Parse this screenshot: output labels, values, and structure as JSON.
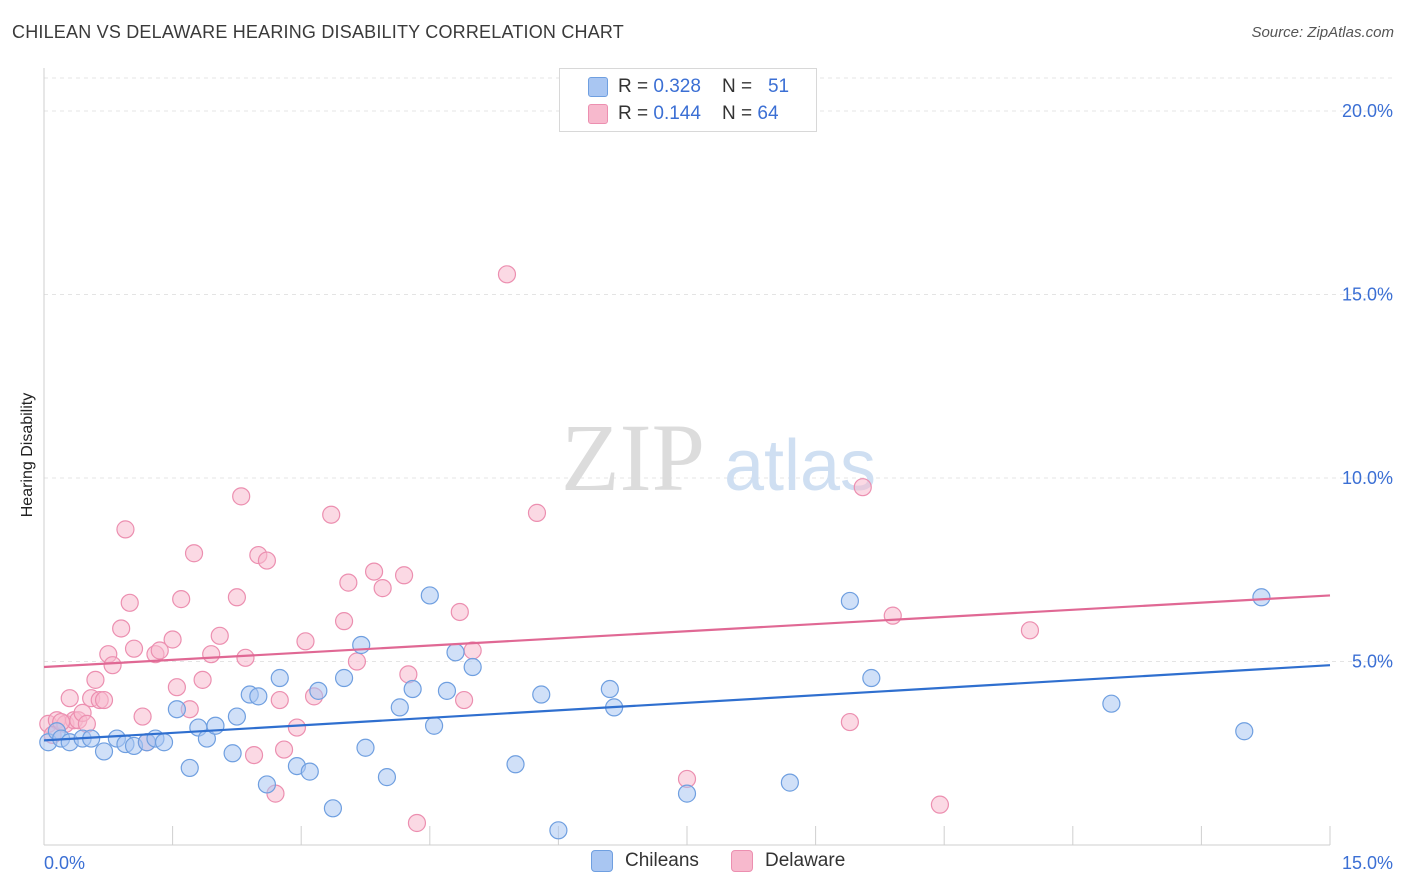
{
  "title": "CHILEAN VS DELAWARE HEARING DISABILITY CORRELATION CHART",
  "source": "Source: ZipAtlas.com",
  "colors": {
    "chileans_fill": "#a9c6f2",
    "chileans_stroke": "#6f9fe0",
    "chileans_line": "#2f6fcf",
    "delaware_fill": "#f7b9cd",
    "delaware_stroke": "#ec8fb0",
    "delaware_line": "#e06894",
    "tick_label": "#3b6fd4",
    "grid": "#e4e4e4"
  },
  "legend": {
    "rows": [
      {
        "r_label": "R = ",
        "r_value": "0.328",
        "n_label": "N = ",
        "n_value": "51"
      },
      {
        "r_label": "R = ",
        "r_value": "0.144",
        "n_label": "N = ",
        "n_value": "64"
      }
    ]
  },
  "bottom_legend": [
    "Chileans",
    "Delaware"
  ],
  "watermark": {
    "zip": "ZIP",
    "atlas": "atlas"
  },
  "chart_data": {
    "type": "scatter",
    "title": "CHILEAN VS DELAWARE HEARING DISABILITY CORRELATION CHART",
    "xlabel": "",
    "ylabel": "Hearing Disability",
    "xlim": [
      0,
      15
    ],
    "ylim": [
      0,
      20
    ],
    "x_tick_labels": [
      "0.0%",
      "15.0%"
    ],
    "y_ticks": [
      5,
      10,
      15,
      20
    ],
    "y_tick_labels": [
      "5.0%",
      "10.0%",
      "15.0%",
      "20.0%"
    ],
    "grid": true,
    "legend_position": "top-center",
    "series": [
      {
        "name": "Chileans",
        "R": 0.328,
        "N": 51,
        "trend": {
          "x": [
            0,
            15
          ],
          "y": [
            2.85,
            4.9
          ]
        },
        "points": [
          [
            0.05,
            2.8
          ],
          [
            0.15,
            3.1
          ],
          [
            0.2,
            2.9
          ],
          [
            0.3,
            2.8
          ],
          [
            0.45,
            2.9
          ],
          [
            0.55,
            2.9
          ],
          [
            0.7,
            2.55
          ],
          [
            0.85,
            2.9
          ],
          [
            0.95,
            2.75
          ],
          [
            1.05,
            2.7
          ],
          [
            1.2,
            2.8
          ],
          [
            1.3,
            2.9
          ],
          [
            1.4,
            2.8
          ],
          [
            1.55,
            3.7
          ],
          [
            1.7,
            2.1
          ],
          [
            1.8,
            3.2
          ],
          [
            1.9,
            2.9
          ],
          [
            2.0,
            3.25
          ],
          [
            2.2,
            2.5
          ],
          [
            2.25,
            3.5
          ],
          [
            2.4,
            4.1
          ],
          [
            2.5,
            4.05
          ],
          [
            2.6,
            1.65
          ],
          [
            2.75,
            4.55
          ],
          [
            2.95,
            2.15
          ],
          [
            3.1,
            2.0
          ],
          [
            3.2,
            4.2
          ],
          [
            3.37,
            1.0
          ],
          [
            3.5,
            4.55
          ],
          [
            3.7,
            5.45
          ],
          [
            3.75,
            2.65
          ],
          [
            4.0,
            1.85
          ],
          [
            4.15,
            3.75
          ],
          [
            4.3,
            4.25
          ],
          [
            4.5,
            6.8
          ],
          [
            4.55,
            3.25
          ],
          [
            4.7,
            4.2
          ],
          [
            4.8,
            5.25
          ],
          [
            5.0,
            4.85
          ],
          [
            5.5,
            2.2
          ],
          [
            5.8,
            4.1
          ],
          [
            6.0,
            0.4
          ],
          [
            6.6,
            4.25
          ],
          [
            6.65,
            3.75
          ],
          [
            7.5,
            1.4
          ],
          [
            8.7,
            1.7
          ],
          [
            9.4,
            6.65
          ],
          [
            9.65,
            4.55
          ],
          [
            12.45,
            3.85
          ],
          [
            14.0,
            3.1
          ],
          [
            14.2,
            6.75
          ]
        ]
      },
      {
        "name": "Delaware",
        "R": 0.144,
        "N": 64,
        "trend": {
          "x": [
            0,
            15
          ],
          "y": [
            4.85,
            6.8
          ]
        },
        "points": [
          [
            0.05,
            3.3
          ],
          [
            0.15,
            3.4
          ],
          [
            0.25,
            3.3
          ],
          [
            0.3,
            4.0
          ],
          [
            0.35,
            3.4
          ],
          [
            0.4,
            3.4
          ],
          [
            0.45,
            3.6
          ],
          [
            0.5,
            3.3
          ],
          [
            0.55,
            4.0
          ],
          [
            0.6,
            4.5
          ],
          [
            0.65,
            3.95
          ],
          [
            0.7,
            3.95
          ],
          [
            0.75,
            5.2
          ],
          [
            0.8,
            4.9
          ],
          [
            0.9,
            5.9
          ],
          [
            0.95,
            8.6
          ],
          [
            1.0,
            6.6
          ],
          [
            1.05,
            5.35
          ],
          [
            1.15,
            3.5
          ],
          [
            1.2,
            2.8
          ],
          [
            1.3,
            5.2
          ],
          [
            1.35,
            5.3
          ],
          [
            1.5,
            5.6
          ],
          [
            1.55,
            4.3
          ],
          [
            1.6,
            6.7
          ],
          [
            1.7,
            3.7
          ],
          [
            1.75,
            7.95
          ],
          [
            1.85,
            4.5
          ],
          [
            1.95,
            5.2
          ],
          [
            2.05,
            5.7
          ],
          [
            2.25,
            6.75
          ],
          [
            2.3,
            9.5
          ],
          [
            2.35,
            5.1
          ],
          [
            2.45,
            2.45
          ],
          [
            2.5,
            7.9
          ],
          [
            2.6,
            7.75
          ],
          [
            2.7,
            1.4
          ],
          [
            2.75,
            3.95
          ],
          [
            2.8,
            2.6
          ],
          [
            2.95,
            3.2
          ],
          [
            3.05,
            5.55
          ],
          [
            3.15,
            4.05
          ],
          [
            3.35,
            9.0
          ],
          [
            3.5,
            6.1
          ],
          [
            3.55,
            7.15
          ],
          [
            3.65,
            5.0
          ],
          [
            3.85,
            7.45
          ],
          [
            3.95,
            7.0
          ],
          [
            4.2,
            7.35
          ],
          [
            4.25,
            4.65
          ],
          [
            4.35,
            0.6
          ],
          [
            4.85,
            6.35
          ],
          [
            4.9,
            3.95
          ],
          [
            5.0,
            5.3
          ],
          [
            5.4,
            15.55
          ],
          [
            5.75,
            9.05
          ],
          [
            7.5,
            1.8
          ],
          [
            9.4,
            3.35
          ],
          [
            9.55,
            9.75
          ],
          [
            9.9,
            6.25
          ],
          [
            10.45,
            1.1
          ],
          [
            11.5,
            5.85
          ],
          [
            0.1,
            3.0
          ],
          [
            0.2,
            3.35
          ]
        ]
      }
    ]
  }
}
